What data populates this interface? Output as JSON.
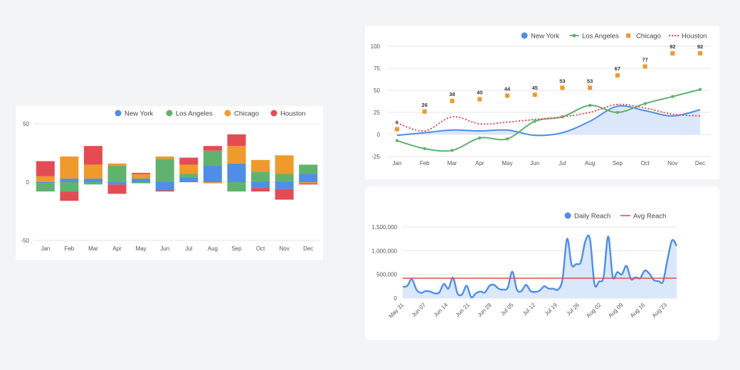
{
  "chart_data": [
    {
      "type": "bar",
      "stacked": true,
      "categories": [
        "Jan",
        "Feb",
        "Mar",
        "Apr",
        "May",
        "Jun",
        "Jul",
        "Aug",
        "Sep",
        "Oct",
        "Nov",
        "Dec"
      ],
      "ylim": [
        -50,
        50
      ],
      "yticks": [
        50,
        0,
        -50
      ],
      "series": [
        {
          "name": "New York",
          "color": "#4e8ee8",
          "values": [
            -1,
            3,
            3,
            -2,
            3,
            -7,
            4,
            14,
            16,
            -5,
            -6,
            7
          ]
        },
        {
          "name": "Los Angeles",
          "color": "#61b26e",
          "values": [
            -7,
            -8,
            -2,
            14,
            -1,
            20,
            3,
            13,
            -8,
            9,
            7,
            8
          ]
        },
        {
          "name": "Chicago",
          "color": "#ef9a2d",
          "values": [
            5,
            19,
            12,
            2,
            4,
            2,
            8,
            -1,
            15,
            10,
            16,
            -1
          ]
        },
        {
          "name": "Houston",
          "color": "#e34c53",
          "values": [
            13,
            -8,
            16,
            -8,
            1,
            -1,
            6,
            4,
            10,
            -3,
            -9,
            -1
          ]
        }
      ],
      "legend_position": "top-right"
    },
    {
      "type": "line",
      "categories": [
        "Jan",
        "Feb",
        "Mar",
        "Apr",
        "May",
        "Jun",
        "Jul",
        "Aug",
        "Sep",
        "Oct",
        "Nov",
        "Dec"
      ],
      "ylim": [
        -25,
        100
      ],
      "yticks": [
        100,
        75,
        50,
        25,
        0,
        -25
      ],
      "series": [
        {
          "name": "New York",
          "color": "#4e8ee8",
          "style": "area-line",
          "values": [
            -1,
            2,
            5,
            4,
            5,
            -1,
            2,
            15,
            32,
            27,
            21,
            28
          ]
        },
        {
          "name": "Los Angeles",
          "color": "#61b26e",
          "style": "line-markers",
          "values": [
            -7,
            -16,
            -18,
            -4,
            -5,
            15,
            20,
            33,
            25,
            35,
            43,
            51
          ]
        },
        {
          "name": "Chicago",
          "color": "#ef9a2d",
          "style": "markers-labels",
          "values": [
            6,
            26,
            38,
            40,
            44,
            45,
            53,
            53,
            67,
            77,
            92,
            92
          ]
        },
        {
          "name": "Houston",
          "color": "#e34c53",
          "style": "dotted",
          "values": [
            13,
            4,
            20,
            12,
            14,
            17,
            20,
            25,
            34,
            30,
            23,
            21
          ]
        }
      ],
      "legend_position": "top-right"
    },
    {
      "type": "area",
      "x_ticks": [
        "May 31",
        "Jun 07",
        "Jun 14",
        "Jun 21",
        "Jun 28",
        "Jul 05",
        "Jul 12",
        "Jul 19",
        "Jul 26",
        "Aug 02",
        "Aug 09",
        "Aug 16",
        "Aug 23"
      ],
      "ylim": [
        0,
        1500000
      ],
      "yticks": [
        1500000,
        1000000,
        500000,
        0
      ],
      "ytick_labels": [
        "1,500,000",
        "1,000,000",
        "500,000",
        "0"
      ],
      "series": [
        {
          "name": "Daily Reach",
          "color": "#4e8ee8",
          "values": [
            240000,
            260000,
            400000,
            180000,
            110000,
            150000,
            140000,
            100000,
            120000,
            300000,
            200000,
            430000,
            100000,
            80000,
            260000,
            20000,
            100000,
            140000,
            120000,
            260000,
            280000,
            200000,
            180000,
            220000,
            560000,
            180000,
            150000,
            280000,
            150000,
            130000,
            160000,
            250000,
            200000,
            200000,
            180000,
            400000,
            1250000,
            700000,
            720000,
            760000,
            1200000,
            1250000,
            300000,
            350000,
            450000,
            1300000,
            450000,
            550000,
            500000,
            680000,
            400000,
            440000,
            420000,
            580000,
            520000,
            380000,
            360000,
            350000,
            820000,
            1220000,
            1100000
          ]
        },
        {
          "name": "Avg Reach",
          "color": "#e34c53",
          "type": "hline",
          "value": 420000
        }
      ],
      "legend_position": "top-right"
    }
  ]
}
